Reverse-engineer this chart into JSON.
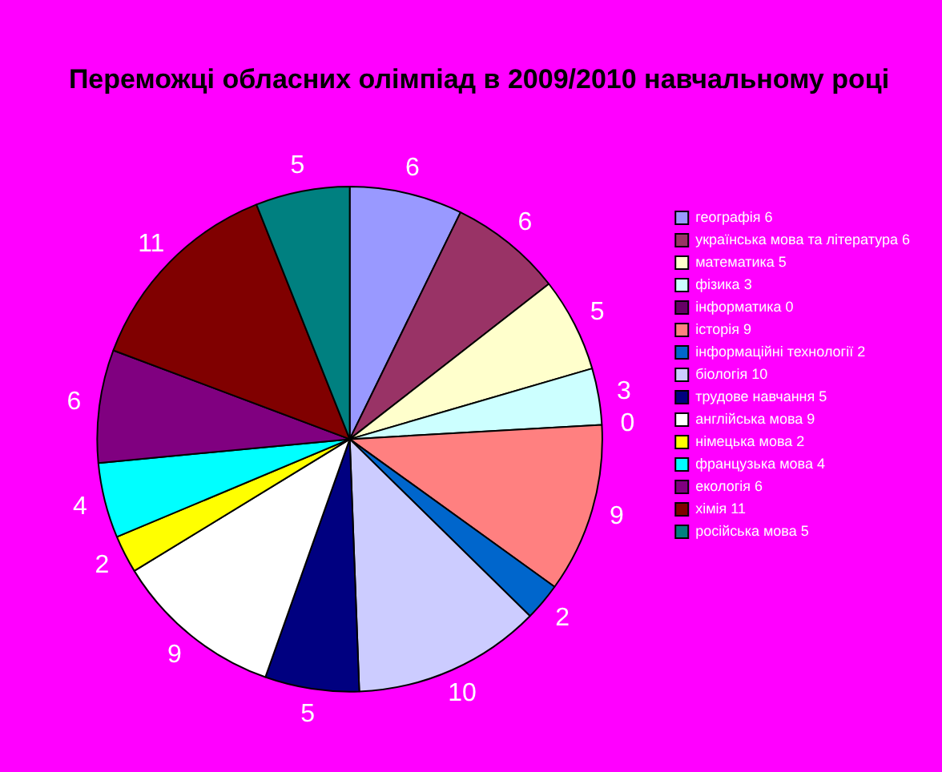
{
  "chart_data": {
    "type": "pie",
    "title": "Переможці обласних олімпіад в 2009/2010 навчальному році",
    "categories": [
      "географія 6",
      "українська мова та література 6",
      "математика 5",
      "фізика 3",
      "інформатика 0",
      "історія 9",
      "інформаційні технології 2",
      "біологія 10",
      "трудове навчання 5",
      "англійська мова 9",
      "німецька мова 2",
      "французька мова 4",
      "екологія 6",
      "хімія 11",
      "російська мова 5"
    ],
    "values": [
      6,
      6,
      5,
      3,
      0,
      9,
      2,
      10,
      5,
      9,
      2,
      4,
      6,
      11,
      5
    ],
    "colors": [
      "#9999ff",
      "#993366",
      "#ffffcc",
      "#ccffff",
      "#660066",
      "#ff8080",
      "#0066cc",
      "#ccccff",
      "#000080",
      "#ffffff",
      "#ffff00",
      "#00ffff",
      "#800080",
      "#800000",
      "#008080"
    ],
    "value_labels": [
      "6",
      "6",
      "5",
      "3",
      "0",
      "9",
      "2",
      "10",
      "5",
      "9",
      "2",
      "4",
      "6",
      "11",
      "5"
    ],
    "legend": "right"
  }
}
